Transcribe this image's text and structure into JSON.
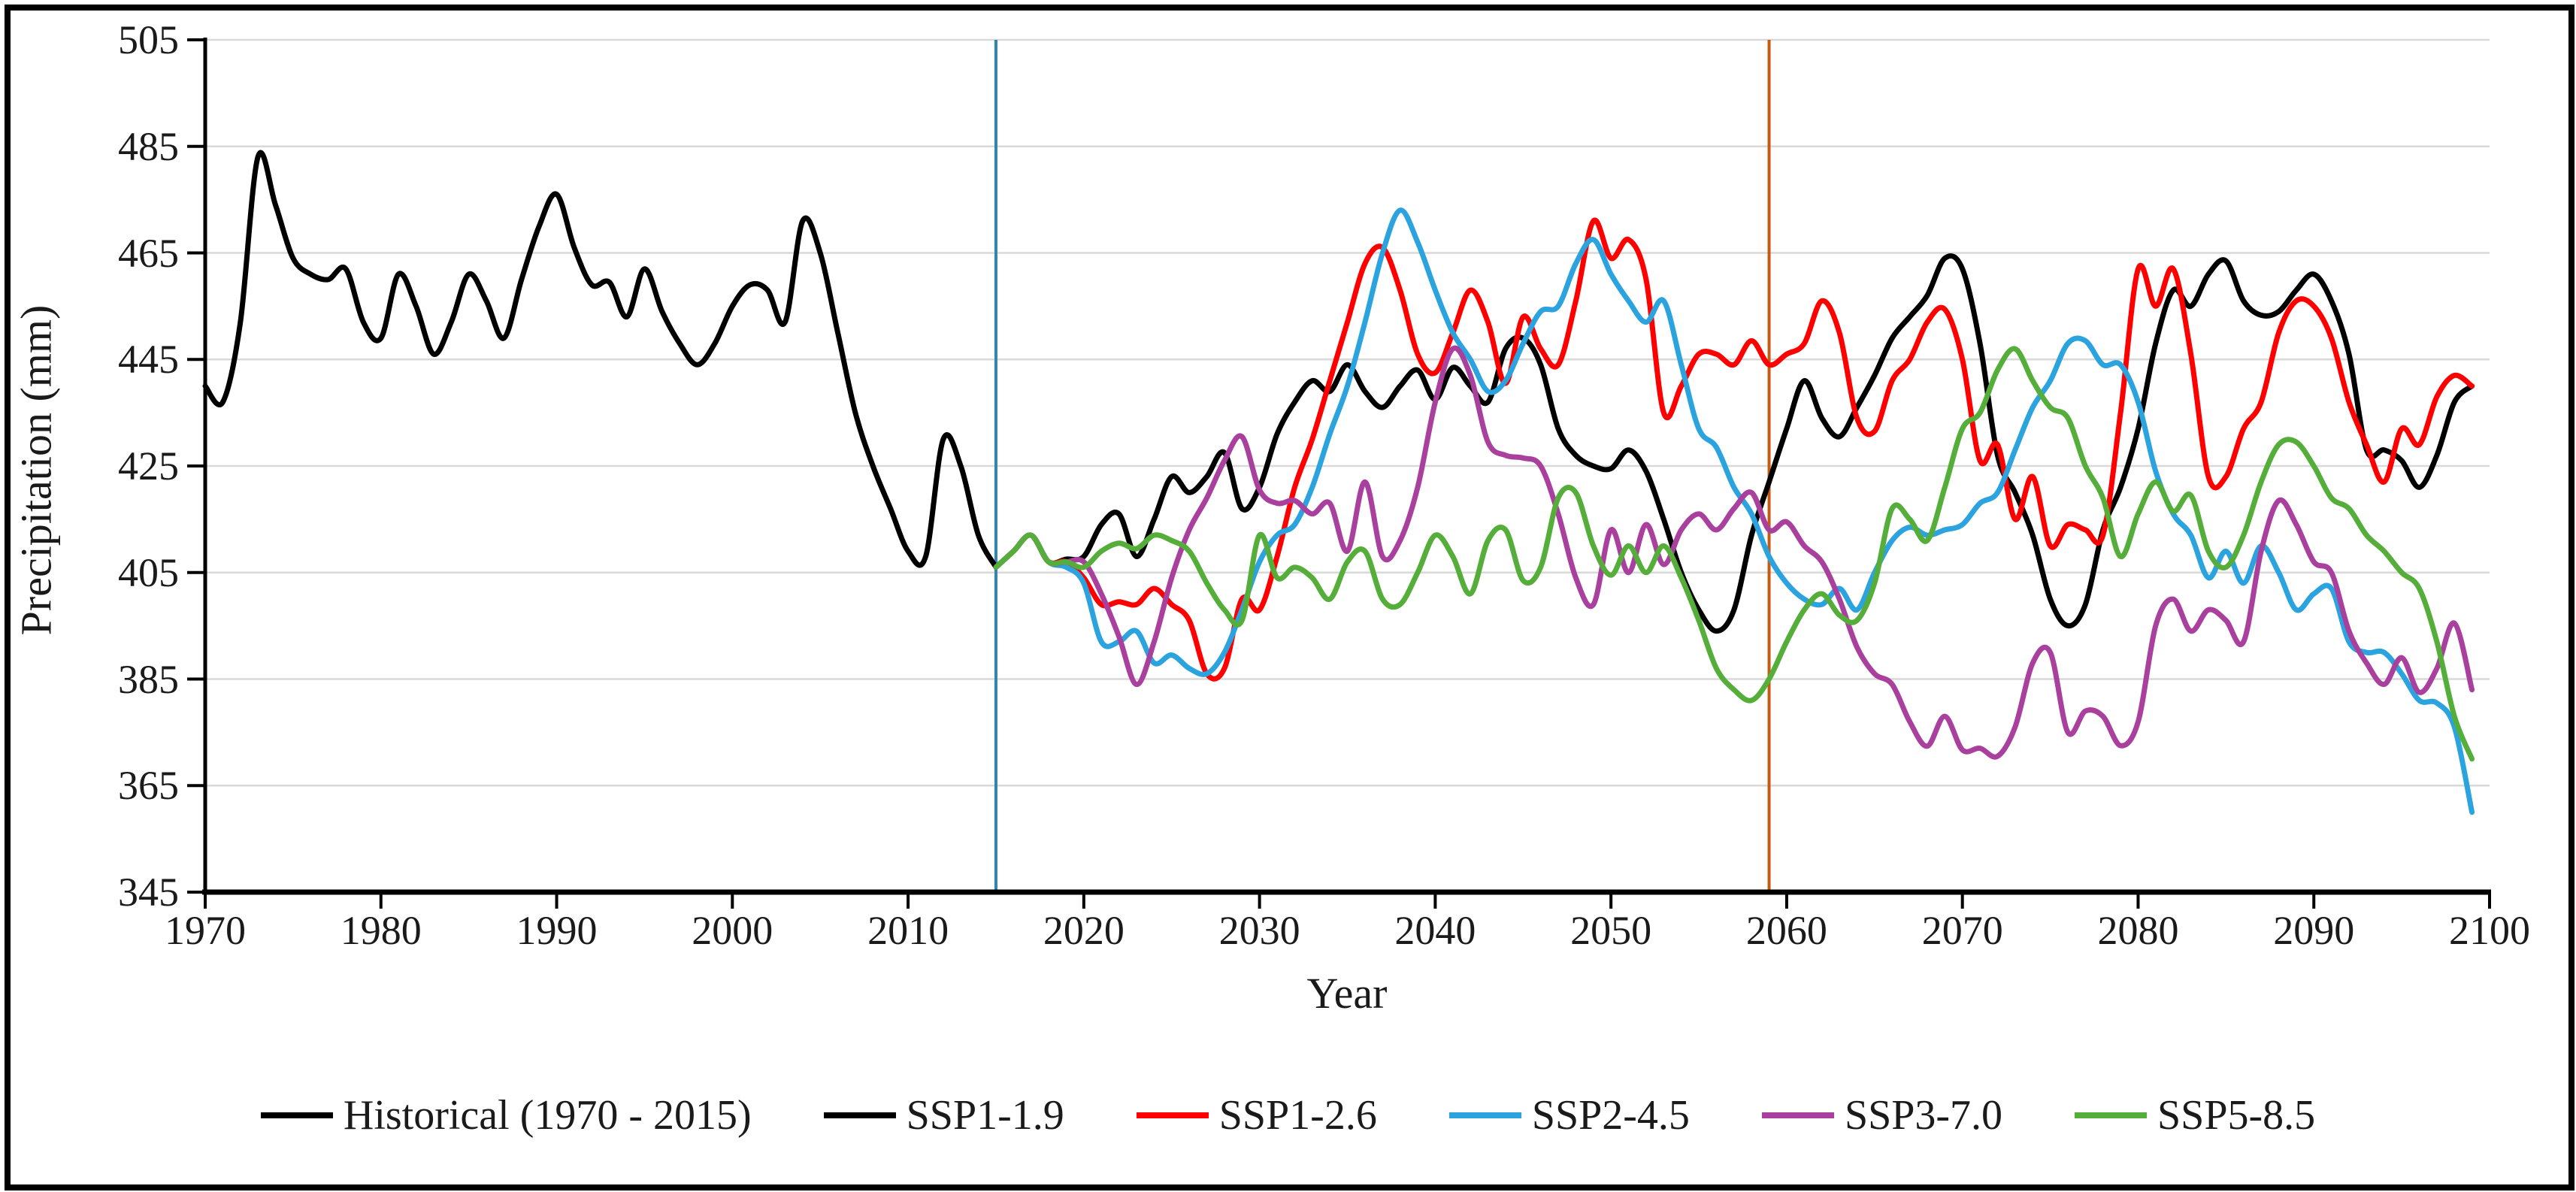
{
  "figure": {
    "background": "#ffffff",
    "border_color": "#000000",
    "text_color": "#1a1a1a",
    "gridline_color": "#d9d9d9",
    "axis_color": "#000000"
  },
  "chart_data": {
    "type": "line",
    "title": "",
    "xlabel": "Year",
    "ylabel": "Precipitation (mm)",
    "xlim": [
      1970,
      2100
    ],
    "ylim": [
      345,
      505
    ],
    "x_ticks": [
      1970,
      1980,
      1990,
      2000,
      2010,
      2020,
      2030,
      2040,
      2050,
      2060,
      2070,
      2080,
      2090,
      2100
    ],
    "y_ticks": [
      345,
      365,
      385,
      405,
      425,
      445,
      465,
      485,
      505
    ],
    "grid": "horizontal",
    "legend_position": "bottom",
    "vertical_markers": [
      {
        "x": 2015,
        "color": "#2e86b5",
        "name": "historical-end-marker"
      },
      {
        "x": 2059,
        "color": "#c55a11",
        "name": "mid-century-marker"
      }
    ],
    "series": [
      {
        "name": "Historical (1970 - 2015)",
        "color": "#000000",
        "x_start": 1970,
        "values": [
          440,
          437,
          452,
          483,
          474,
          464,
          461,
          460,
          462,
          452,
          449,
          461,
          455,
          446,
          452,
          461,
          456,
          449,
          460,
          470,
          476,
          466,
          459,
          459.5,
          453,
          462,
          454,
          448,
          444,
          448,
          455,
          459,
          458,
          452,
          471,
          465,
          450,
          435,
          425,
          417,
          409,
          408,
          430,
          425,
          412,
          406
        ]
      },
      {
        "name": "SSP1-1.9",
        "color": "#000000",
        "x_start": 2015,
        "values": [
          406,
          409,
          412,
          407,
          407.5,
          408,
          414,
          416,
          408,
          415,
          423,
          420,
          423,
          427.5,
          417,
          421,
          431,
          437,
          441,
          439,
          444,
          439,
          436,
          440,
          443,
          437.5,
          443.5,
          440,
          437,
          447,
          449,
          444,
          432,
          427,
          425,
          424.5,
          428,
          424,
          415,
          405,
          398,
          394,
          398,
          412,
          422,
          432,
          441,
          434,
          430.5,
          436,
          442,
          449,
          453,
          457,
          464,
          462,
          448,
          427,
          420,
          412,
          400,
          395,
          399,
          413,
          421,
          432,
          448,
          458,
          455,
          461,
          463.5,
          456,
          453.3,
          454,
          458,
          461,
          456,
          446,
          428,
          428,
          426,
          421,
          427,
          437,
          440
        ]
      },
      {
        "name": "SSP1-2.6",
        "color": "#fe0000",
        "x_start": 2015,
        "values": [
          406,
          409,
          412,
          407,
          407,
          404,
          399,
          399.5,
          399,
          402,
          399,
          396,
          386,
          387,
          400,
          398,
          408,
          421,
          430,
          441,
          452,
          463,
          466,
          458,
          446,
          442.5,
          450,
          458,
          452,
          440.5,
          453,
          447,
          444,
          456,
          471,
          464,
          467.5,
          460,
          435,
          440,
          446,
          446,
          444,
          448.5,
          444,
          446,
          448,
          456,
          450,
          434,
          431.5,
          441,
          445,
          452,
          454.4,
          445,
          426,
          429,
          415,
          423,
          410,
          414,
          413,
          412,
          435,
          462,
          455,
          462,
          446,
          423,
          423,
          432,
          437,
          450,
          456,
          455,
          449,
          437,
          429,
          422,
          432,
          429,
          438,
          442,
          440
        ]
      },
      {
        "name": "SSP2-4.5",
        "color": "#2ba3df",
        "x_start": 2015,
        "values": [
          406,
          409,
          412,
          407,
          406,
          403,
          392,
          392,
          394,
          388,
          389.5,
          387,
          386,
          390,
          398,
          407,
          412,
          414,
          421,
          431,
          440,
          452,
          465,
          473,
          467,
          458,
          450,
          445,
          439,
          441,
          448,
          454,
          455,
          463,
          467.5,
          461,
          456,
          452,
          456,
          444,
          432,
          428.5,
          421,
          416,
          408,
          403,
          400,
          399,
          402,
          398,
          405,
          411,
          413.5,
          412,
          413,
          414,
          418,
          420,
          428,
          436,
          441,
          448,
          448.5,
          444,
          444,
          437,
          424,
          416,
          412,
          404,
          409,
          403,
          410,
          405,
          398,
          401,
          402,
          392,
          390,
          390,
          386,
          381,
          380.5,
          376,
          360
        ]
      },
      {
        "name": "SSP3-7.0",
        "color": "#a9409e",
        "x_start": 2015,
        "values": [
          406,
          409,
          412,
          407,
          407,
          407,
          401,
          393,
          384,
          392,
          404,
          413,
          419,
          426,
          430.5,
          420.5,
          418,
          418.5,
          416,
          418,
          409,
          422,
          408,
          411,
          421,
          437,
          447,
          442,
          429.5,
          427,
          426.5,
          425,
          416,
          404,
          399,
          413,
          405,
          414,
          406.5,
          413,
          416,
          413,
          417,
          420,
          413,
          414.5,
          410,
          407,
          400,
          391,
          386,
          384,
          377,
          372.4,
          378,
          371.7,
          372,
          370.5,
          376,
          388,
          390,
          375,
          379,
          378,
          372.5,
          377,
          395,
          400,
          394,
          398,
          396,
          392,
          409,
          418.5,
          414,
          407,
          405,
          394,
          388,
          384,
          389,
          382.5,
          387,
          395.5,
          383
        ]
      },
      {
        "name": "SSP5-8.5",
        "color": "#55ae3a",
        "x_start": 2015,
        "values": [
          406,
          409,
          412,
          407,
          407,
          406,
          409,
          410.5,
          409.5,
          412,
          411,
          409,
          403,
          398,
          396,
          412,
          404,
          406,
          404,
          400,
          407,
          409,
          400,
          399,
          405,
          412,
          408,
          401,
          411,
          413,
          403.5,
          406,
          419,
          420,
          410,
          404.5,
          410,
          405,
          410,
          404,
          396,
          387,
          383,
          381,
          385,
          392,
          398,
          401,
          397,
          396,
          403,
          417,
          415,
          411,
          421,
          432,
          435,
          443,
          447,
          441,
          436,
          434,
          425,
          419,
          408,
          416,
          422,
          416.5,
          419.5,
          409,
          406,
          412,
          422,
          429,
          429.5,
          425,
          419,
          417,
          412,
          409,
          405,
          402,
          392,
          378,
          370
        ]
      }
    ]
  }
}
